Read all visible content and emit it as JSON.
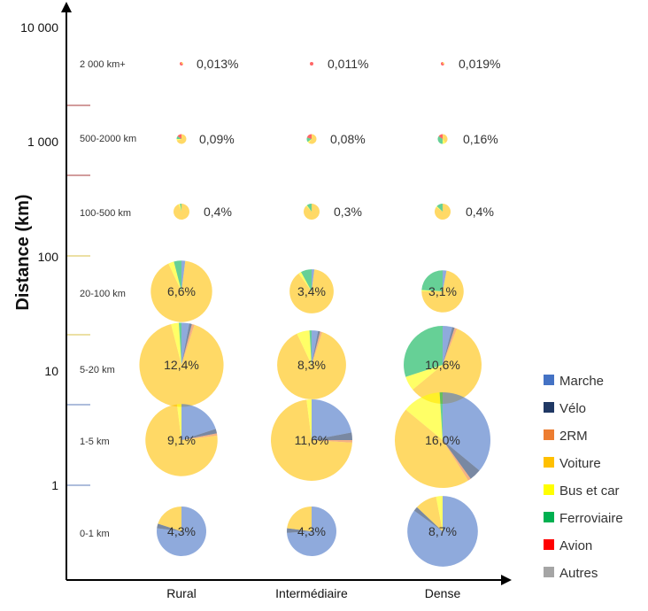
{
  "chart_data": {
    "type": "pie",
    "ylabel": "Distance (km)",
    "y_scale": "log",
    "y_ticks": [
      "10 000",
      "1 000",
      "100",
      "10",
      "1"
    ],
    "categories": [
      "Rural",
      "Intermédiaire",
      "Dense"
    ],
    "bands": [
      {
        "label": "2 000 km+",
        "shares": [
          "0,013%",
          "0,011%",
          "0,019%"
        ]
      },
      {
        "label": "500-2000 km",
        "shares": [
          "0,09%",
          "0,08%",
          "0,16%"
        ]
      },
      {
        "label": "100-500 km",
        "shares": [
          "0,4%",
          "0,3%",
          "0,4%"
        ]
      },
      {
        "label": "20-100 km",
        "shares": [
          "6,6%",
          "3,4%",
          "3,1%"
        ]
      },
      {
        "label": "5-20 km",
        "shares": [
          "12,4%",
          "8,3%",
          "10,6%"
        ]
      },
      {
        "label": "1-5 km",
        "shares": [
          "9,1%",
          "11,6%",
          "16,0%"
        ]
      },
      {
        "label": "0-1 km",
        "shares": [
          "4,3%",
          "4,3%",
          "8,7%"
        ]
      }
    ],
    "share_values": [
      [
        0.013,
        0.011,
        0.019
      ],
      [
        0.09,
        0.08,
        0.16
      ],
      [
        0.4,
        0.3,
        0.4
      ],
      [
        6.6,
        3.4,
        3.1
      ],
      [
        12.4,
        8.3,
        10.6
      ],
      [
        9.1,
        11.6,
        16.0
      ],
      [
        4.3,
        4.3,
        8.7
      ]
    ],
    "modes": [
      "Marche",
      "Vélo",
      "2RM",
      "Voiture",
      "Bus et car",
      "Ferroviaire",
      "Avion",
      "Autres"
    ],
    "mode_colors": [
      "#4472C4",
      "#203864",
      "#ED7D31",
      "#FFC000",
      "#FFFF00",
      "#00B050",
      "#FF0000",
      "#A5A5A5"
    ],
    "mode_split_estimated": [
      [
        [
          0,
          0,
          0,
          30,
          0,
          0,
          70,
          0
        ],
        [
          0,
          0,
          0,
          0,
          0,
          0,
          100,
          0
        ],
        [
          0,
          0,
          0,
          30,
          0,
          0,
          70,
          0
        ]
      ],
      [
        [
          0,
          0,
          0,
          70,
          5,
          10,
          15,
          0
        ],
        [
          0,
          0,
          0,
          60,
          5,
          15,
          20,
          0
        ],
        [
          0,
          0,
          0,
          40,
          10,
          35,
          15,
          0
        ]
      ],
      [
        [
          0,
          0,
          0,
          94,
          3,
          3,
          0,
          0
        ],
        [
          0,
          0,
          0,
          88,
          2,
          10,
          0,
          0
        ],
        [
          0,
          0,
          0,
          85,
          2,
          13,
          0,
          0
        ]
      ],
      [
        [
          2,
          0,
          0,
          91,
          3,
          4,
          0,
          0
        ],
        [
          2,
          0,
          0,
          88,
          2,
          8,
          0,
          0
        ],
        [
          3,
          0,
          0,
          72,
          1,
          24,
          0,
          0
        ]
      ],
      [
        [
          3,
          1,
          1,
          91,
          3,
          1,
          0,
          0
        ],
        [
          3,
          1,
          1,
          88,
          6,
          1,
          0,
          0
        ],
        [
          4,
          1,
          1,
          58,
          6,
          30,
          0,
          0
        ]
      ],
      [
        [
          20,
          2,
          1,
          75,
          2,
          0,
          0,
          0
        ],
        [
          22,
          3,
          1,
          72,
          2,
          0,
          0,
          0
        ],
        [
          36,
          4,
          1,
          45,
          13,
          1,
          0,
          0
        ]
      ],
      [
        [
          77,
          3,
          0,
          20,
          0,
          0,
          0,
          0
        ],
        [
          74,
          3,
          0,
          23,
          0,
          0,
          0,
          0
        ],
        [
          85,
          2,
          0,
          10,
          3,
          0,
          0,
          0
        ]
      ]
    ]
  }
}
